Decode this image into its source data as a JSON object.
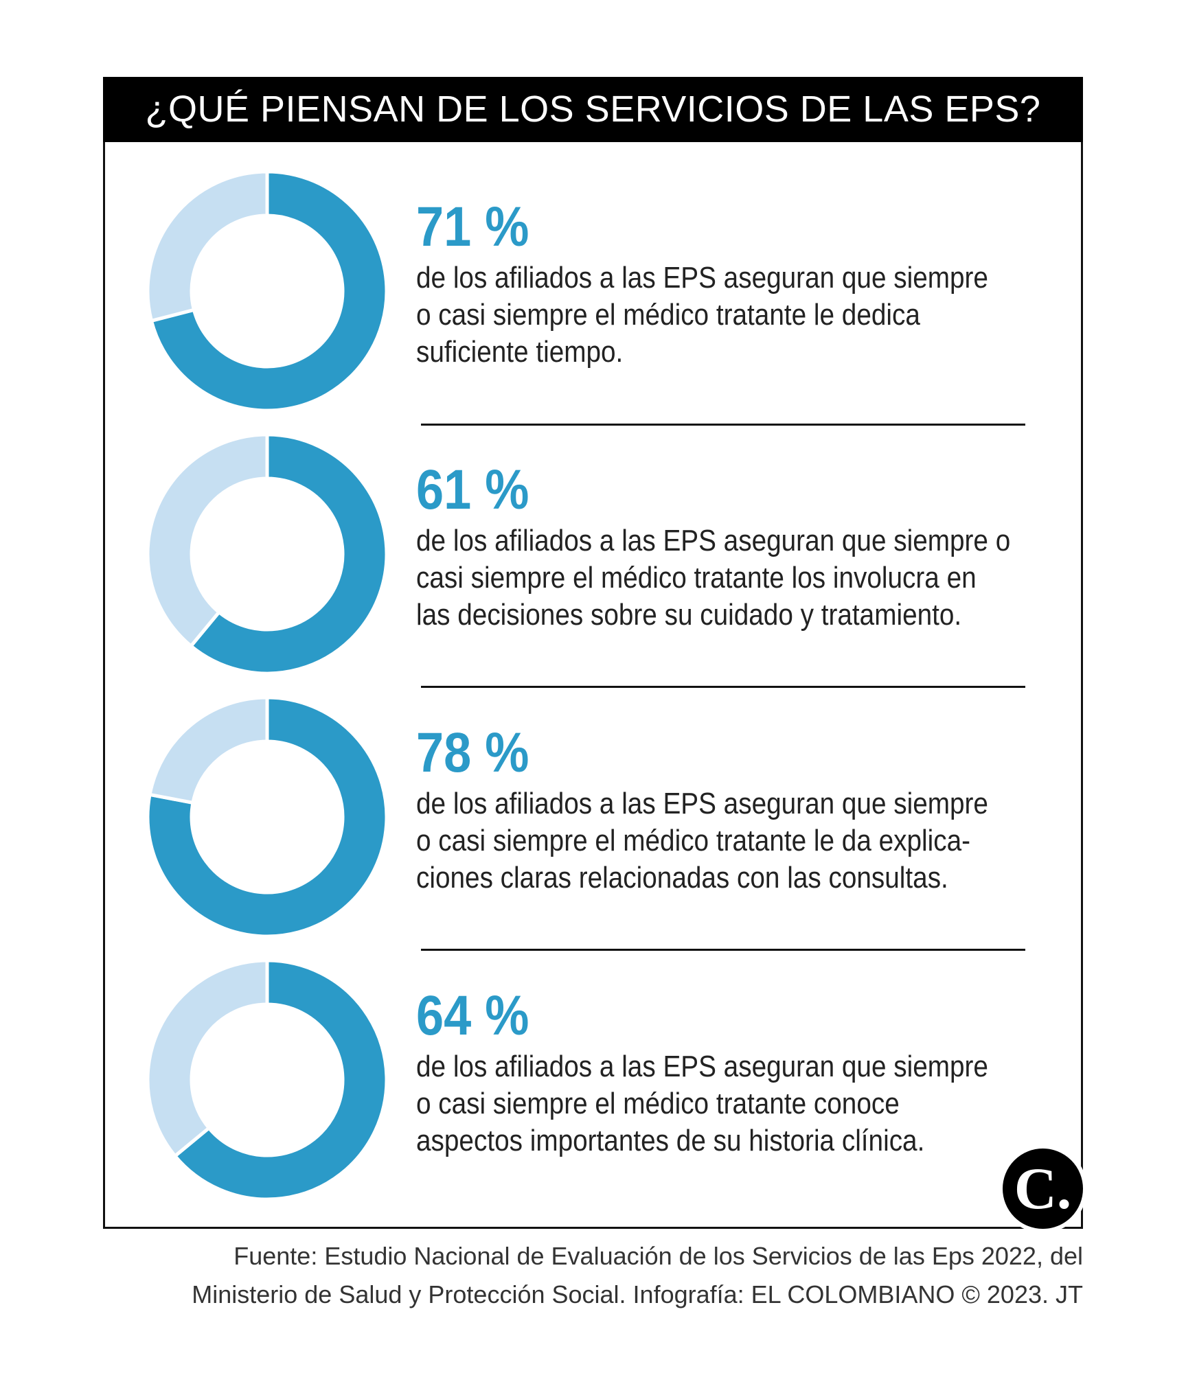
{
  "title": "¿QUÉ PIENSAN DE LOS SERVICIOS DE LAS EPS?",
  "colors": {
    "primary": "#2b9ac8",
    "remainder": "#c6dff2",
    "title_bg": "#000000",
    "title_text": "#ffffff"
  },
  "chart_data": [
    {
      "type": "pie",
      "variant": "donut",
      "values": [
        71,
        29
      ],
      "percent_label": "71 %",
      "description_lines": [
        "de los afiliados a las EPS aseguran que siempre",
        "o casi siempre el médico tratante le dedica",
        "suficiente tiempo."
      ]
    },
    {
      "type": "pie",
      "variant": "donut",
      "values": [
        61,
        39
      ],
      "percent_label": "61 %",
      "description_lines": [
        "de los afiliados a las EPS aseguran que siempre o",
        "casi siempre el médico tratante los involucra en",
        "las decisiones sobre su cuidado y tratamiento."
      ]
    },
    {
      "type": "pie",
      "variant": "donut",
      "values": [
        78,
        22
      ],
      "percent_label": "78 %",
      "description_lines": [
        "de los afiliados a las EPS aseguran que siempre",
        "o casi siempre el médico tratante le da explica-",
        "ciones claras relacionadas con las consultas."
      ]
    },
    {
      "type": "pie",
      "variant": "donut",
      "values": [
        64,
        36
      ],
      "percent_label": "64 %",
      "description_lines": [
        "de los afiliados a las EPS aseguran que siempre",
        "o casi siempre el médico tratante conoce",
        "aspectos importantes de su historia clínica."
      ]
    }
  ],
  "logo": {
    "letter": "C.",
    "icon": "el-colombiano-logo-icon"
  },
  "source_lines": [
    "Fuente: Estudio Nacional de Evaluación de los Servicios de las Eps 2022, del",
    "Ministerio de Salud y Protección Social. Infografía: EL COLOMBIANO © 2023. JT"
  ]
}
